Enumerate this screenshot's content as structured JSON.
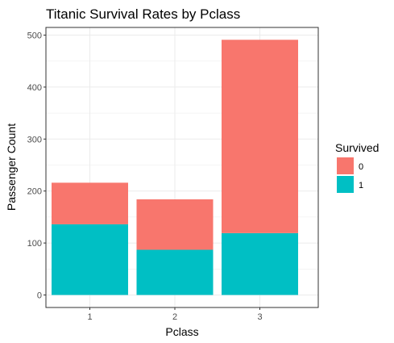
{
  "chart_data": {
    "type": "bar",
    "stacked": true,
    "title": "Titanic Survival Rates by Pclass",
    "xlabel": "Pclass",
    "ylabel": "Passenger Count",
    "categories": [
      "1",
      "2",
      "3"
    ],
    "series": [
      {
        "name": "0",
        "values": [
          80,
          97,
          372
        ],
        "color": "#F8766D"
      },
      {
        "name": "1",
        "values": [
          136,
          87,
          119
        ],
        "color": "#00BFC4"
      }
    ],
    "ylim": [
      0,
      500
    ],
    "yticks": [
      0,
      100,
      200,
      300,
      400,
      500
    ],
    "grid": true,
    "legend": {
      "title": "Survived",
      "placement": "right"
    }
  }
}
